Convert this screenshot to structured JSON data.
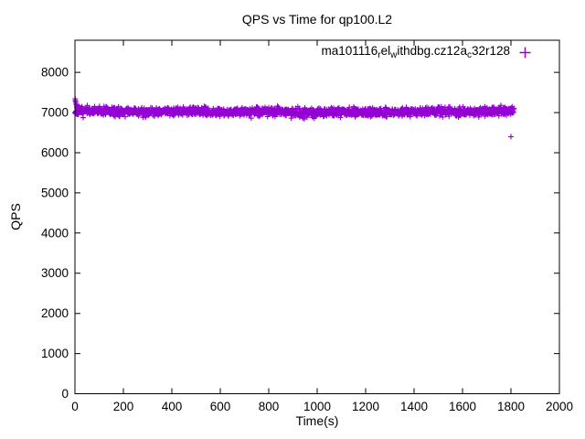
{
  "title": "QPS vs Time for qp100.L2",
  "axes": {
    "x_label": "Time(s)",
    "y_label": "QPS"
  },
  "legend": {
    "marker_glyph": "+",
    "marker_color": "#9400D3",
    "segments": [
      {
        "text": "ma101116",
        "sub": false
      },
      {
        "text": "r",
        "sub": true
      },
      {
        "text": "el",
        "sub": false
      },
      {
        "text": "w",
        "sub": true
      },
      {
        "text": "ithdbg.cz12a",
        "sub": false
      },
      {
        "text": "c",
        "sub": true
      },
      {
        "text": "32r128",
        "sub": false
      }
    ]
  },
  "chart_data": {
    "type": "scatter",
    "title": "QPS vs Time for qp100.L2",
    "xlabel": "Time(s)",
    "ylabel": "QPS",
    "xlim": [
      0,
      2000
    ],
    "ylim": [
      0,
      8800
    ],
    "x_ticks": [
      0,
      200,
      400,
      600,
      800,
      1000,
      1200,
      1400,
      1600,
      1800,
      2000
    ],
    "y_ticks": [
      0,
      1000,
      2000,
      3000,
      4000,
      5000,
      6000,
      7000,
      8000
    ],
    "grid": false,
    "tick_mirror": true,
    "legend_position": "top-right-inside",
    "series": [
      {
        "name": "ma101116_rel_withdbg.cz12a_c32r128",
        "marker": "plus",
        "color": "#9400D3",
        "band": {
          "description": "dense steady band of per-second samples",
          "t_start": 0,
          "t_end": 1812,
          "t_step": 1,
          "qps_mean": 7020,
          "qps_spread": 190
        },
        "startup_points": [
          [
            1,
            7340
          ],
          [
            2,
            7300
          ],
          [
            3,
            7270
          ],
          [
            4,
            7230
          ],
          [
            6,
            7190
          ],
          [
            9,
            7150
          ],
          [
            13,
            7110
          ],
          [
            20,
            7080
          ]
        ],
        "outlier_points": [
          [
            1800,
            6400
          ]
        ]
      }
    ]
  }
}
